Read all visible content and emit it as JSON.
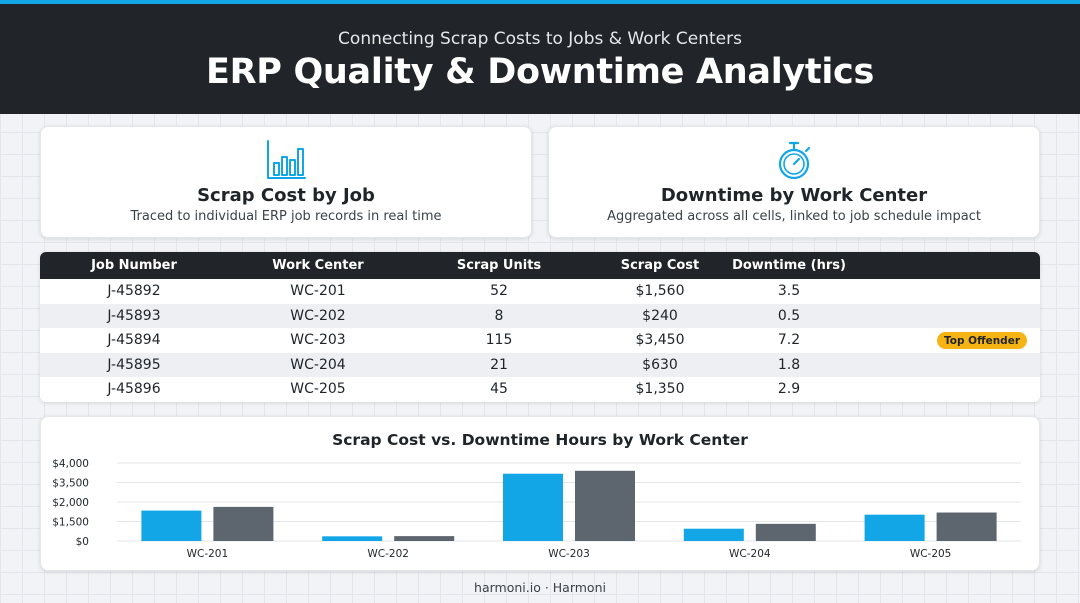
{
  "header": {
    "subtitle": "Connecting Scrap Costs to Jobs & Work Centers",
    "title": "ERP Quality & Downtime Analytics"
  },
  "cards": [
    {
      "icon": "bar-chart-icon",
      "title": "Scrap Cost by Job",
      "description": "Traced to individual ERP job records in real time"
    },
    {
      "icon": "stopwatch-icon",
      "title": "Downtime by Work Center",
      "description": "Aggregated across all cells, linked to job schedule impact"
    }
  ],
  "table": {
    "headers": [
      "Job Number",
      "Work Center",
      "Scrap Units",
      "Scrap Cost",
      "Downtime (hrs)"
    ],
    "rows": [
      {
        "job": "J-45892",
        "center": "WC-201",
        "units": "52",
        "cost": "$1,560",
        "downtime": "3.5",
        "badge": ""
      },
      {
        "job": "J-45893",
        "center": "WC-202",
        "units": "8",
        "cost": "$240",
        "downtime": "0.5",
        "badge": ""
      },
      {
        "job": "J-45894",
        "center": "WC-203",
        "units": "115",
        "cost": "$3,450",
        "downtime": "7.2",
        "badge": "Top Offender"
      },
      {
        "job": "J-45895",
        "center": "WC-204",
        "units": "21",
        "cost": "$630",
        "downtime": "1.8",
        "badge": ""
      },
      {
        "job": "J-45896",
        "center": "WC-205",
        "units": "45",
        "cost": "$1,350",
        "downtime": "2.9",
        "badge": ""
      }
    ]
  },
  "chart_data": {
    "type": "bar",
    "title": "Scrap Cost vs. Downtime Hours by Work Center",
    "categories": [
      "WC-201",
      "WC-202",
      "WC-203",
      "WC-204",
      "WC-205"
    ],
    "y_tick_labels": [
      "$0",
      "$1,500",
      "$2,000",
      "$3,500",
      "$4,000"
    ],
    "ylim": [
      0,
      4000
    ],
    "grid": true,
    "series": [
      {
        "values": [
          1560,
          240,
          3450,
          630,
          1350
        ],
        "color": "#12a6e6"
      },
      {
        "values": [
          1750,
          250,
          3600,
          880,
          1460
        ],
        "color": "#5d666e"
      }
    ]
  },
  "footer": "harmoni.io · Harmoni",
  "colors": {
    "accent": "#12a6e6",
    "dark": "#212529",
    "secondary": "#5d666e",
    "badge": "#f6b414"
  }
}
